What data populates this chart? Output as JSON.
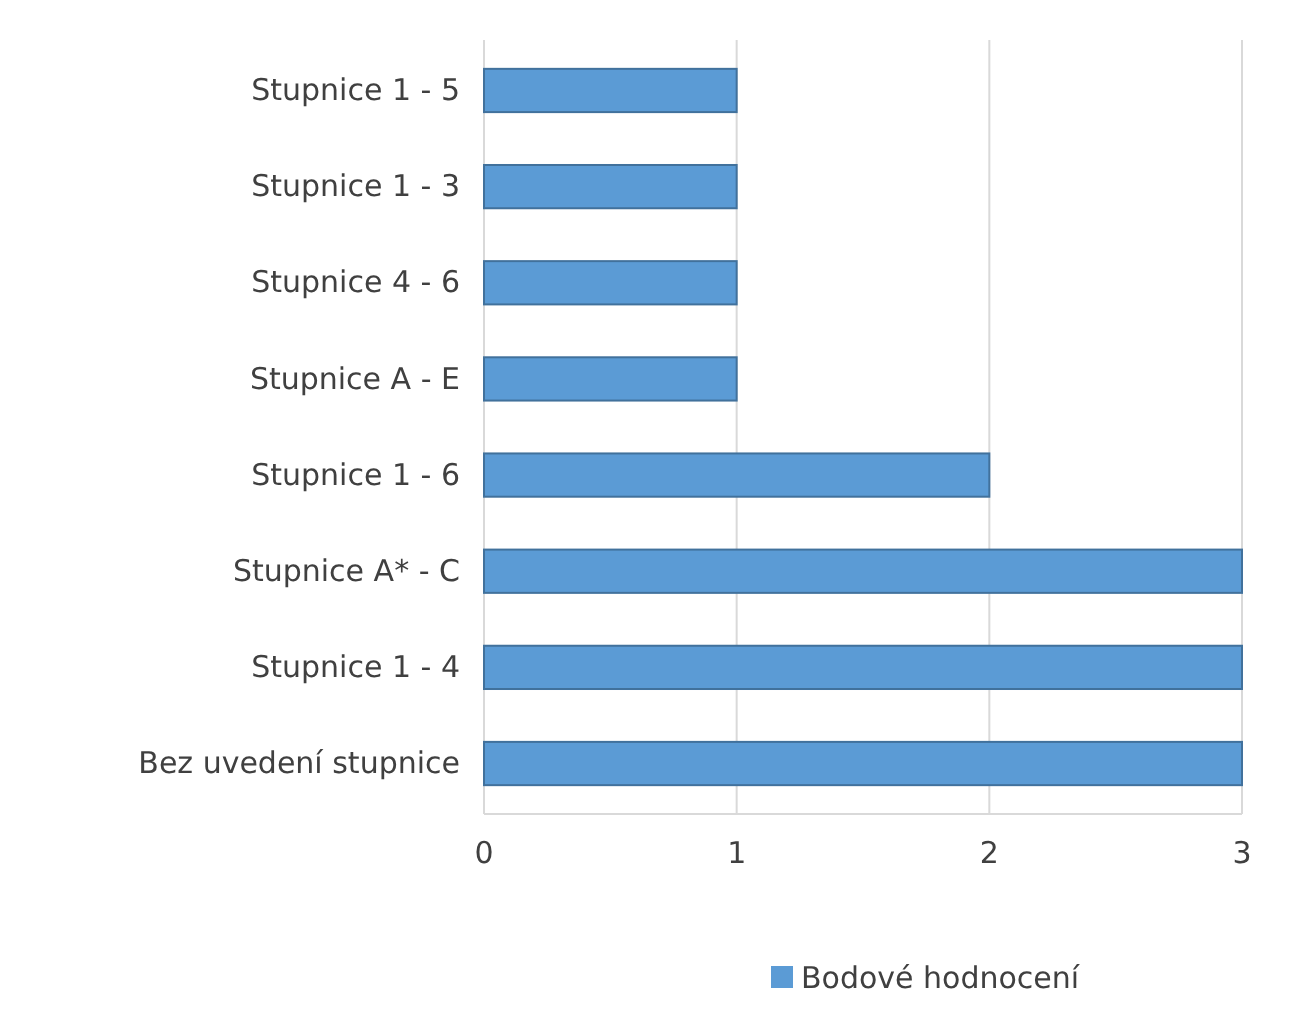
{
  "chart_data": {
    "type": "bar",
    "orientation": "horizontal",
    "categories": [
      "Stupnice 1 - 5",
      "Stupnice 1 - 3",
      "Stupnice 4 - 6",
      "Stupnice A - E",
      "Stupnice 1 - 6",
      "Stupnice A* - C",
      "Stupnice 1 - 4",
      "Bez uvedení stupnice"
    ],
    "series": [
      {
        "name": "Bodové hodnocení",
        "color": "#5b9bd5",
        "values": [
          1,
          1,
          1,
          1,
          2,
          3,
          3,
          3
        ]
      }
    ],
    "xlim": [
      0,
      3
    ],
    "xticks": [
      0,
      1,
      2,
      3
    ],
    "grid": "x",
    "legend": "bottom"
  }
}
